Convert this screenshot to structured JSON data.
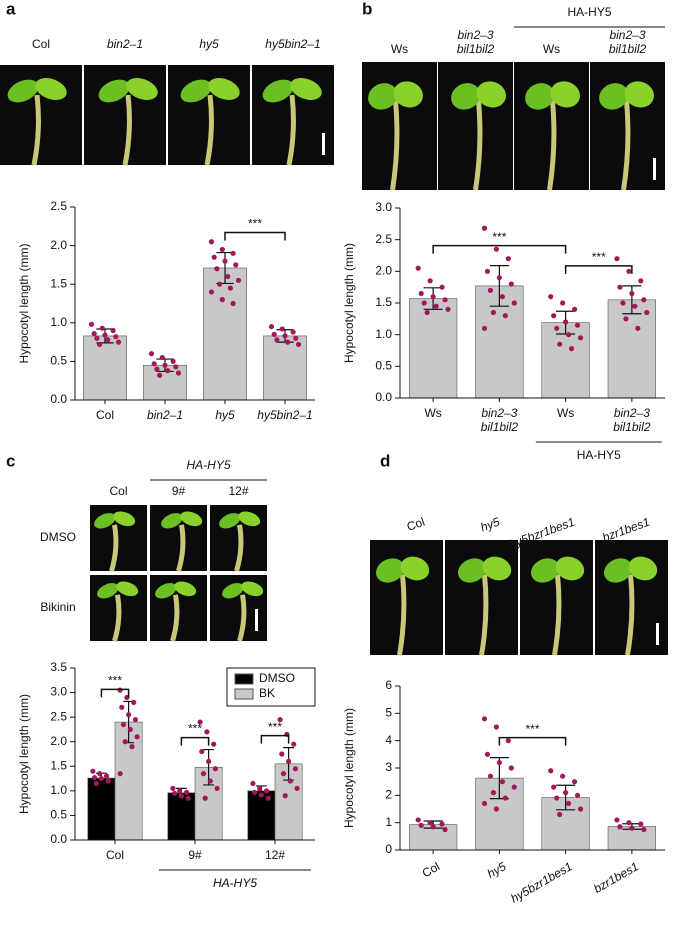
{
  "chart_data": [
    {
      "type": "bar",
      "panel": "a",
      "photo_labels": [
        "Col",
        "bin2–1",
        "hy5",
        "hy5bin2–1"
      ],
      "ylabel": "Hypocotyl length (mm)",
      "categories": [
        "Col",
        "bin2–1",
        "hy5",
        "hy5bin2–1"
      ],
      "italic": [
        false,
        true,
        true,
        true
      ],
      "values": [
        0.83,
        0.45,
        1.71,
        0.83
      ],
      "errors": [
        0.09,
        0.08,
        0.2,
        0.08
      ],
      "points": [
        [
          0.98,
          0.93,
          0.9,
          0.86,
          0.84,
          0.82,
          0.8,
          0.78,
          0.75,
          0.72
        ],
        [
          0.6,
          0.55,
          0.5,
          0.47,
          0.45,
          0.43,
          0.4,
          0.38,
          0.35,
          0.32
        ],
        [
          2.05,
          1.95,
          1.9,
          1.85,
          1.8,
          1.75,
          1.7,
          1.6,
          1.55,
          1.5,
          1.45,
          1.4,
          1.3,
          1.25
        ],
        [
          0.95,
          0.92,
          0.88,
          0.85,
          0.83,
          0.8,
          0.78,
          0.75,
          0.72
        ]
      ],
      "color": "#c8c8c8",
      "point_color": "#a3185c",
      "ylim": [
        0,
        2.5
      ],
      "yticks": [
        {
          "value": 0,
          "label": "0.0"
        },
        0.5,
        {
          "value": 1,
          "label": "1.0"
        },
        1.5,
        {
          "value": 2,
          "label": "2.0"
        },
        2.5
      ],
      "significance": [
        {
          "from": 2,
          "to": 3,
          "text": "***"
        }
      ]
    },
    {
      "type": "bar",
      "panel": "b",
      "photo_labels": [
        [
          "Ws"
        ],
        [
          "bin2–3",
          "bil1bil2"
        ],
        [
          "Ws"
        ],
        [
          "bin2–3",
          "bil1bil2"
        ]
      ],
      "photo_group": {
        "text": "HA-HY5",
        "from": 2,
        "to": 3
      },
      "ylabel": "Hypocotyl length (mm)",
      "categories": [
        [
          "Ws"
        ],
        [
          "bin2–3",
          "bil1bil2"
        ],
        [
          "Ws"
        ],
        [
          "bin2–3",
          "bil1bil2"
        ]
      ],
      "italic": [
        false,
        true,
        false,
        true
      ],
      "values": [
        1.57,
        1.77,
        1.19,
        1.55
      ],
      "errors": [
        0.17,
        0.32,
        0.18,
        0.22
      ],
      "points": [
        [
          2.05,
          1.85,
          1.75,
          1.65,
          1.6,
          1.55,
          1.5,
          1.45,
          1.4,
          1.35
        ],
        [
          2.68,
          2.35,
          2.2,
          2.0,
          1.9,
          1.8,
          1.7,
          1.6,
          1.5,
          1.35,
          1.3,
          1.1
        ],
        [
          1.6,
          1.5,
          1.4,
          1.3,
          1.2,
          1.15,
          1.1,
          1.0,
          0.95,
          0.85,
          0.78
        ],
        [
          2.2,
          2.0,
          1.85,
          1.75,
          1.65,
          1.55,
          1.5,
          1.45,
          1.35,
          1.25,
          1.1
        ]
      ],
      "color": "#c8c8c8",
      "point_color": "#a3185c",
      "ylim": [
        0,
        3
      ],
      "yticks": [
        {
          "value": 0,
          "label": "0.0"
        },
        0.5,
        {
          "value": 1,
          "label": "1.0"
        },
        1.5,
        {
          "value": 2,
          "label": "2.0"
        },
        2.5,
        {
          "value": 3,
          "label": "3.0"
        }
      ],
      "significance": [
        {
          "from": 0,
          "to": 2,
          "text": "***"
        },
        {
          "from": 2,
          "to": 3,
          "text": "***"
        }
      ],
      "group": {
        "text": "HA-HY5",
        "from": 2,
        "to": 3
      }
    },
    {
      "type": "grouped_bar",
      "panel": "c",
      "photo_labels": [
        "Col",
        "9#",
        "12#"
      ],
      "photo_row_labels": [
        "DMSO",
        "Bikinin"
      ],
      "photo_group": {
        "text": "HA-HY5",
        "from": 1,
        "to": 2,
        "italic": true
      },
      "ylabel": "Hypocotyl length (mm)",
      "categories": [
        "Col",
        "9#",
        "12#"
      ],
      "series": [
        {
          "name": "DMSO",
          "color": "#000000",
          "values": [
            1.26,
            0.96,
            1.0
          ],
          "errors": [
            0.1,
            0.09,
            0.1
          ],
          "points": [
            [
              1.4,
              1.35,
              1.3,
              1.27,
              1.25,
              1.2,
              1.15
            ],
            [
              1.05,
              1.0,
              0.97,
              0.95,
              0.9,
              0.85
            ],
            [
              1.15,
              1.05,
              1.0,
              0.97,
              0.92,
              0.85
            ]
          ]
        },
        {
          "name": "BK",
          "color": "#c8c8c8",
          "values": [
            2.4,
            1.48,
            1.55
          ],
          "errors": [
            0.42,
            0.36,
            0.33
          ],
          "points": [
            [
              3.05,
              2.9,
              2.8,
              2.7,
              2.55,
              2.45,
              2.35,
              2.25,
              2.1,
              2.0,
              1.9,
              1.35
            ],
            [
              2.4,
              2.2,
              1.95,
              1.8,
              1.6,
              1.45,
              1.35,
              1.2,
              1.05,
              0.85
            ],
            [
              2.45,
              2.15,
              1.95,
              1.75,
              1.6,
              1.45,
              1.35,
              1.2,
              1.05,
              0.9
            ]
          ]
        }
      ],
      "point_color": "#a3185c",
      "legend": "upper right",
      "ylim": [
        0,
        3.5
      ],
      "yticks": [
        {
          "value": 0,
          "label": "0.0"
        },
        0.5,
        {
          "value": 1,
          "label": "1.0"
        },
        1.5,
        {
          "value": 2,
          "label": "2.0"
        },
        2.5,
        {
          "value": 3,
          "label": "3.0"
        },
        3.5
      ],
      "significance": [
        {
          "category": 0,
          "text": "***"
        },
        {
          "category": 1,
          "text": "***"
        },
        {
          "category": 2,
          "text": "***"
        }
      ],
      "group": {
        "text": "HA-HY5",
        "from": 1,
        "to": 2,
        "italic": true
      }
    },
    {
      "type": "bar",
      "panel": "d",
      "photo_labels": [
        "Col",
        "hy5",
        "hy5bzr1bes1",
        "bzr1bes1"
      ],
      "ylabel": "Hypocotyl length (mm)",
      "categories": [
        "Col",
        "hy5",
        "hy5bzr1bes1",
        "bzr1bes1"
      ],
      "italic": [
        false,
        true,
        true,
        true
      ],
      "xtick_rotation": -30,
      "values": [
        0.93,
        2.63,
        1.92,
        0.86
      ],
      "errors": [
        0.13,
        0.75,
        0.45,
        0.1
      ],
      "points": [
        [
          1.1,
          1.0,
          0.95,
          0.9,
          0.85,
          0.75
        ],
        [
          4.8,
          4.5,
          4.0,
          3.5,
          3.2,
          3.0,
          2.7,
          2.5,
          2.3,
          2.1,
          1.9,
          1.7,
          1.5
        ],
        [
          2.9,
          2.7,
          2.5,
          2.3,
          2.1,
          2.0,
          1.9,
          1.7,
          1.5,
          1.3
        ],
        [
          1.1,
          1.0,
          0.95,
          0.85,
          0.8,
          0.75
        ]
      ],
      "color": "#c8c8c8",
      "point_color": "#a3185c",
      "ylim": [
        0,
        6
      ],
      "yticks": [
        0,
        1,
        2,
        3,
        4,
        5,
        6
      ],
      "significance": [
        {
          "from": 1,
          "to": 2,
          "text": "***"
        }
      ]
    }
  ]
}
